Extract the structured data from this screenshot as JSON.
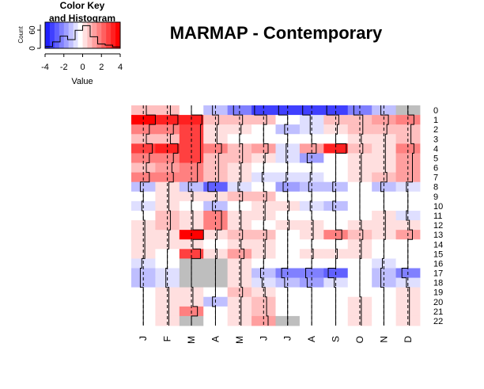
{
  "title": "MARMAP - Contemporary",
  "color_key": {
    "title_line1": "Color Key",
    "title_line2": "and Histogram",
    "ylabel": "Count",
    "yticks": [
      "0",
      "60"
    ],
    "xticks": [
      "-4",
      "-2",
      "0",
      "2",
      "4"
    ],
    "xlabel": "Value",
    "range": [
      -4,
      4
    ],
    "histogram": [
      6,
      22,
      42,
      30,
      62,
      78,
      40,
      15,
      11,
      5
    ]
  },
  "chart_data": {
    "type": "heatmap",
    "title": "MARMAP - Contemporary",
    "x_labels": [
      "J",
      "F",
      "M",
      "A",
      "M",
      "J",
      "J",
      "A",
      "S",
      "O",
      "N",
      "D"
    ],
    "y_labels": [
      "0",
      "1",
      "2",
      "3",
      "4",
      "5",
      "6",
      "7",
      "8",
      "9",
      "10",
      "11",
      "12",
      "13",
      "14",
      "15",
      "16",
      "17",
      "18",
      "19",
      "20",
      "21",
      "22"
    ],
    "color_range": [
      -4,
      4
    ],
    "missing_color": "#bebebe",
    "low_color": "#0000ff",
    "mid_color": "#ffffff",
    "high_color": "#ff0000",
    "trace_color": "#000000",
    "values": [
      [
        1,
        1,
        0,
        -1,
        -2,
        -3,
        -3,
        -3,
        -3,
        -2,
        -1,
        null
      ],
      [
        4,
        3.5,
        3.5,
        1,
        1,
        1,
        0,
        -0.5,
        1,
        1,
        1.5,
        2
      ],
      [
        2,
        2,
        3,
        0.5,
        0.5,
        0,
        -1,
        -0.5,
        0.5,
        1,
        1,
        1
      ],
      [
        1,
        1,
        3,
        0.5,
        0,
        0,
        0,
        0,
        0,
        0.5,
        0.5,
        1
      ],
      [
        3,
        3.5,
        3,
        2,
        1,
        1.5,
        -0.5,
        1.5,
        3.5,
        1,
        0.5,
        2
      ],
      [
        2,
        2,
        3,
        1,
        1,
        0.5,
        -0.5,
        -1.5,
        0,
        0.5,
        0.5,
        1.5
      ],
      [
        1,
        1.5,
        2,
        1,
        0.5,
        0,
        0,
        0,
        0,
        0.5,
        0.5,
        1.5
      ],
      [
        2,
        2,
        2,
        1,
        0.5,
        -0.5,
        -0.5,
        -0.5,
        0,
        0.5,
        1,
        1.5
      ],
      [
        -1,
        0.5,
        -1,
        -2.5,
        -0.5,
        0,
        -1.5,
        -1,
        -1,
        0,
        -1,
        -0.5
      ],
      [
        0,
        0.5,
        0.5,
        0.5,
        1,
        1,
        0,
        0,
        0,
        0,
        0,
        0
      ],
      [
        -0.5,
        0.5,
        0,
        -1,
        0,
        0.5,
        0.5,
        -0.5,
        -1,
        0,
        0,
        0
      ],
      [
        0,
        1,
        0.5,
        2,
        0.5,
        0.5,
        0,
        0,
        0,
        0,
        0.5,
        -0.5
      ],
      [
        0.5,
        1,
        0.5,
        2,
        0.5,
        0,
        0.5,
        0.5,
        0,
        0.5,
        0.5,
        0.5
      ],
      [
        0.5,
        0.5,
        4,
        0.5,
        1,
        1,
        0,
        0.5,
        2,
        1,
        0.5,
        1.5
      ],
      [
        0.5,
        0.5,
        0.5,
        0,
        0.5,
        0.5,
        0,
        0,
        0,
        0.5,
        0,
        0
      ],
      [
        0.5,
        0,
        3,
        0.5,
        1.5,
        0.5,
        0,
        0.5,
        0.5,
        0.5,
        0,
        0
      ],
      [
        -0.5,
        0,
        null,
        null,
        0.5,
        0,
        0,
        0,
        0,
        0,
        -0.5,
        0
      ],
      [
        -1,
        -0.5,
        null,
        null,
        0.5,
        -1,
        -2,
        -2,
        -2.5,
        0,
        -1,
        -2
      ],
      [
        -1,
        -0.5,
        null,
        null,
        0.5,
        -0.5,
        -1,
        -1.5,
        -0.5,
        0,
        -1,
        -0.5
      ],
      [
        0,
        0.5,
        0.5,
        0,
        1,
        0.5,
        0,
        0,
        0,
        0,
        0,
        0.5
      ],
      [
        0,
        0.5,
        0.5,
        -1,
        0.5,
        1,
        0,
        0,
        0,
        0.5,
        0,
        0.5
      ],
      [
        0,
        0.5,
        2,
        0,
        0.5,
        1,
        0,
        0,
        0,
        0.5,
        0,
        0.5
      ],
      [
        0,
        0.5,
        null,
        0,
        0.5,
        1.5,
        null,
        0,
        0,
        0.5,
        0,
        0.5
      ]
    ]
  }
}
